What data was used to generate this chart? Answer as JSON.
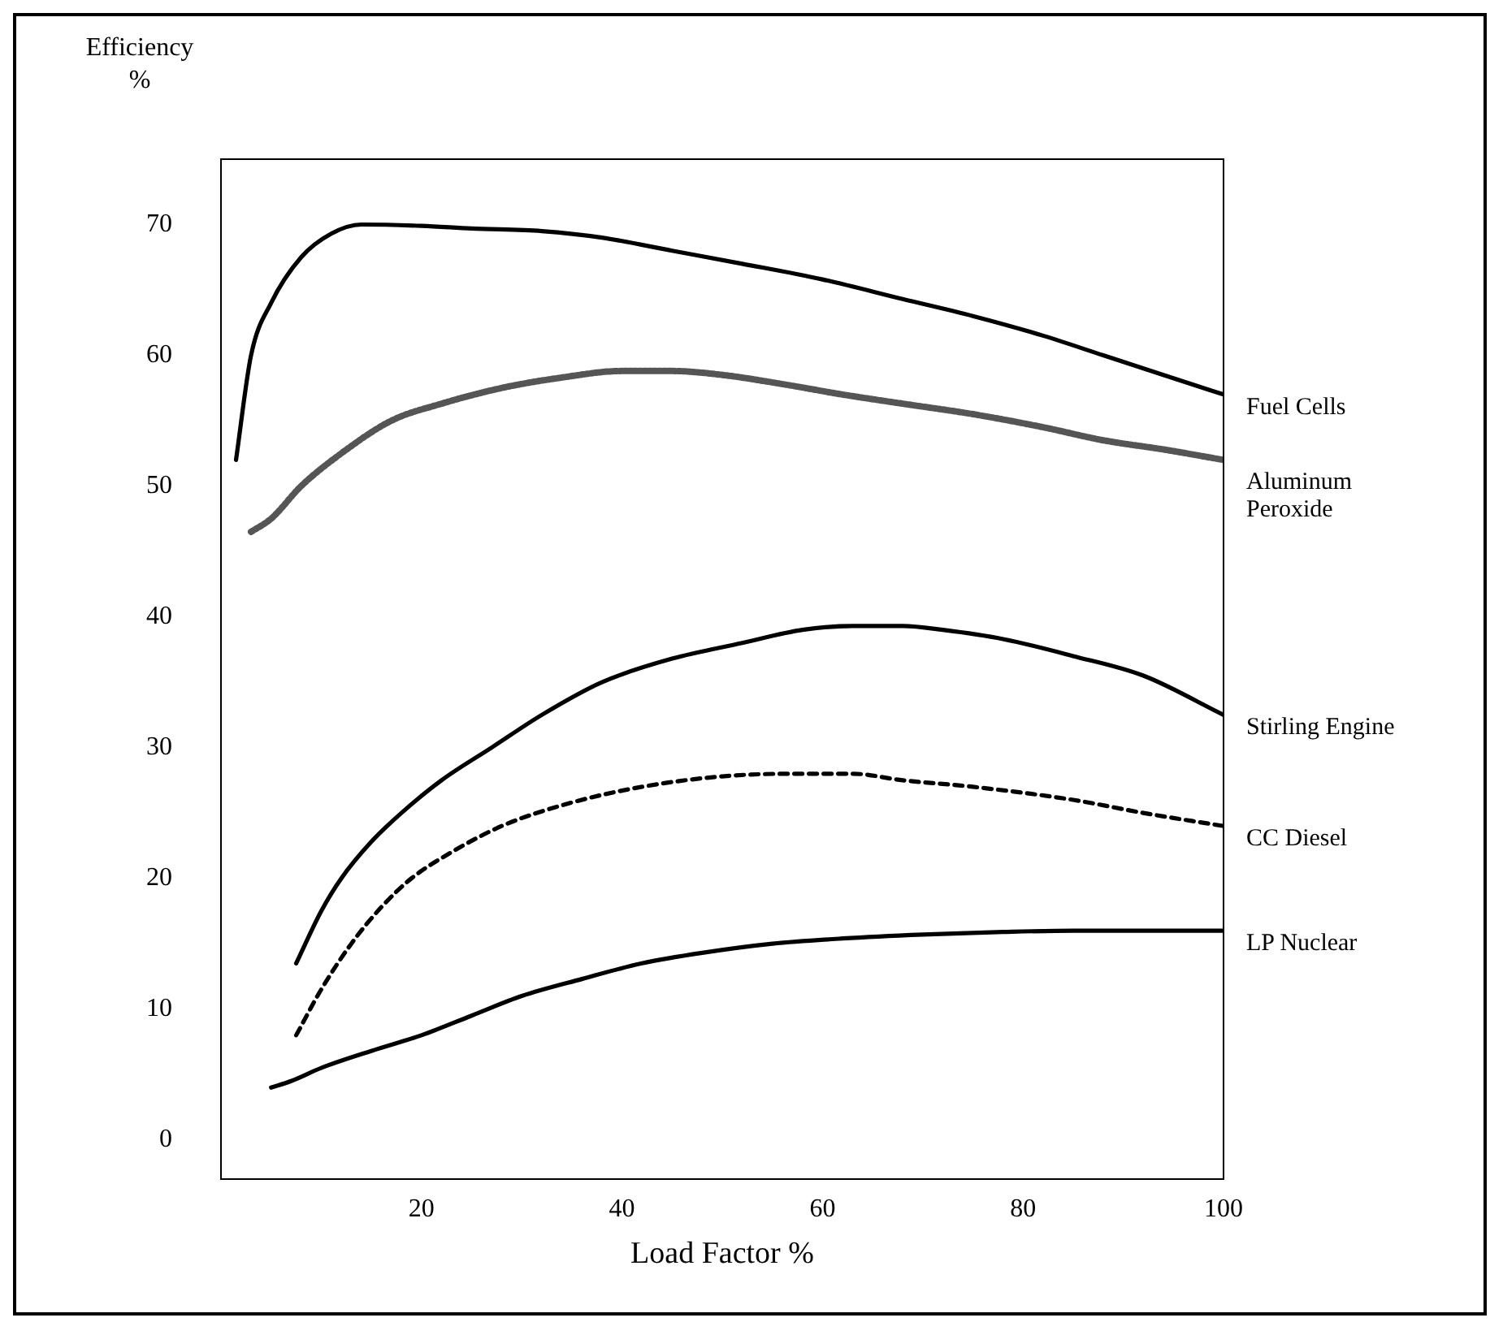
{
  "chart_data": {
    "type": "line",
    "ylabel": "Efficiency %",
    "xlabel": "Load Factor %",
    "xlim": [
      0,
      100
    ],
    "ylim": [
      -3,
      75
    ],
    "xticks": [
      20,
      40,
      60,
      80,
      100
    ],
    "yticks": [
      0,
      10,
      20,
      30,
      40,
      50,
      60,
      70
    ],
    "grid": false,
    "legend": false,
    "marker": "none",
    "series": [
      {
        "name": "Fuel Cells",
        "color": "#000000",
        "line_style": "solid",
        "x": [
          1.5,
          3,
          5,
          8,
          11,
          14,
          20,
          25,
          32,
          38,
          45,
          52,
          60,
          68,
          75,
          82,
          88,
          94,
          100
        ],
        "values": [
          52,
          60,
          64,
          67.5,
          69.3,
          70,
          69.9,
          69.7,
          69.5,
          69,
          68,
          67,
          65.8,
          64.3,
          63,
          61.5,
          60,
          58.5,
          57
        ]
      },
      {
        "name": "Aluminum Peroxide",
        "color": "#555555",
        "line_style": "dotted",
        "x": [
          3,
          5,
          8,
          12,
          17,
          22,
          28,
          34,
          40,
          45,
          50,
          56,
          62,
          68,
          75,
          82,
          88,
          94,
          100
        ],
        "values": [
          46.5,
          47.5,
          50,
          52.5,
          55,
          56.3,
          57.5,
          58.3,
          58.8,
          58.8,
          58.5,
          57.8,
          57,
          56.3,
          55.5,
          54.5,
          53.5,
          52.8,
          52
        ]
      },
      {
        "name": "Stirling Engine",
        "color": "#000000",
        "line_style": "solid",
        "x": [
          7.5,
          10,
          12,
          15,
          18,
          22,
          27,
          32,
          38,
          45,
          52,
          58,
          63,
          68,
          72,
          78,
          85,
          92,
          100
        ],
        "values": [
          13.5,
          17.5,
          20,
          22.8,
          25,
          27.5,
          30,
          32.5,
          35,
          36.8,
          38,
          39,
          39.3,
          39.3,
          39,
          38.3,
          37,
          35.5,
          32.5
        ]
      },
      {
        "name": "CC Diesel",
        "color": "#000000",
        "line_style": "dashed",
        "x": [
          7.5,
          10,
          13,
          16,
          19,
          23,
          28,
          35,
          42,
          50,
          57,
          63,
          68,
          75,
          85,
          92,
          100
        ],
        "values": [
          8,
          11.5,
          15,
          17.8,
          20,
          22,
          24,
          25.8,
          27,
          27.8,
          28,
          28,
          27.5,
          27,
          26,
          25,
          24
        ]
      },
      {
        "name": "LP Nuclear",
        "color": "#000000",
        "line_style": "solid",
        "x": [
          5,
          7,
          10,
          15,
          20,
          25,
          30,
          36,
          42,
          48,
          55,
          62,
          70,
          78,
          85,
          92,
          100
        ],
        "values": [
          4,
          4.5,
          5.5,
          6.8,
          8,
          9.5,
          11,
          12.3,
          13.5,
          14.3,
          15,
          15.4,
          15.7,
          15.9,
          16,
          16,
          16
        ]
      }
    ]
  }
}
